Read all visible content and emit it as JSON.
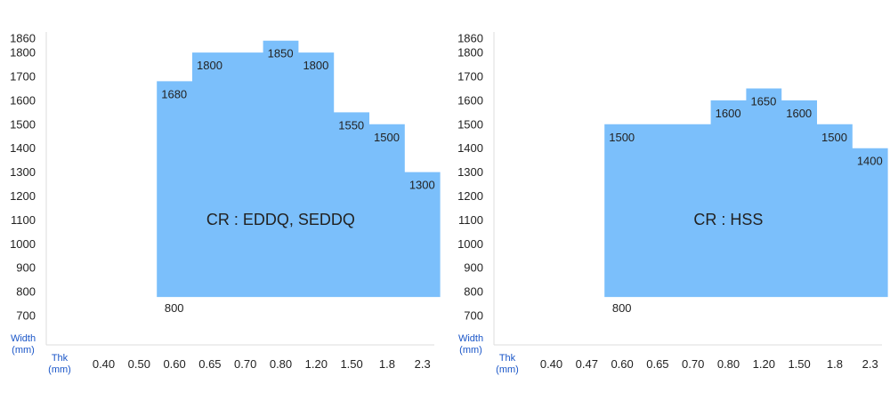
{
  "colors": {
    "fill": "#7bbffb",
    "axis": "#dddddd",
    "axis_title": "#1a56c8",
    "text": "#222222"
  },
  "chart_data": [
    {
      "type": "area",
      "title": "",
      "label": "CR : EDDQ, SEDDQ",
      "xlabel": "Thk (mm)",
      "ylabel": "Width (mm)",
      "y_ticks": [
        700,
        800,
        900,
        1000,
        1100,
        1200,
        1300,
        1400,
        1500,
        1600,
        1700,
        1800,
        1860
      ],
      "x_categories": [
        "0.40",
        "0.50",
        "0.60",
        "0.65",
        "0.70",
        "0.80",
        "1.20",
        "1.50",
        "1.8",
        "2.3"
      ],
      "grid": false,
      "min_width": 800,
      "steps": [
        {
          "x": "0.60",
          "max": 1680
        },
        {
          "x": "0.65",
          "max": 1800
        },
        {
          "x": "0.70",
          "max": 1800
        },
        {
          "x": "0.80",
          "max": 1850
        },
        {
          "x": "1.20",
          "max": 1800
        },
        {
          "x": "1.50",
          "max": 1550
        },
        {
          "x": "1.8",
          "max": 1500
        },
        {
          "x": "2.3",
          "max": 1300
        }
      ],
      "labels": [
        {
          "text": "1680",
          "x": "0.60"
        },
        {
          "text": "1800",
          "x": "0.65"
        },
        {
          "text": "1850",
          "x": "0.80"
        },
        {
          "text": "1800",
          "x": "1.20"
        },
        {
          "text": "1550",
          "x": "1.50"
        },
        {
          "text": "1500",
          "x": "1.8"
        },
        {
          "text": "1300",
          "x": "2.3"
        },
        {
          "text": "800",
          "x": "0.60"
        }
      ]
    },
    {
      "type": "area",
      "title": "",
      "label": "CR : HSS",
      "xlabel": "Thk (mm)",
      "ylabel": "Width (mm)",
      "y_ticks": [
        700,
        800,
        900,
        1000,
        1100,
        1200,
        1300,
        1400,
        1500,
        1600,
        1700,
        1800,
        1860
      ],
      "x_categories": [
        "0.40",
        "0.47",
        "0.60",
        "0.65",
        "0.70",
        "0.80",
        "1.20",
        "1.50",
        "1.8",
        "2.3"
      ],
      "grid": false,
      "min_width": 800,
      "steps": [
        {
          "x": "0.60",
          "max": 1500
        },
        {
          "x": "0.65",
          "max": 1500
        },
        {
          "x": "0.70",
          "max": 1500
        },
        {
          "x": "0.80",
          "max": 1600
        },
        {
          "x": "1.20",
          "max": 1650
        },
        {
          "x": "1.50",
          "max": 1600
        },
        {
          "x": "1.8",
          "max": 1500
        },
        {
          "x": "2.3",
          "max": 1400
        }
      ],
      "labels": [
        {
          "text": "1500",
          "x": "0.60"
        },
        {
          "text": "1600",
          "x": "0.80"
        },
        {
          "text": "1650",
          "x": "1.20"
        },
        {
          "text": "1600",
          "x": "1.50"
        },
        {
          "text": "1500",
          "x": "1.8"
        },
        {
          "text": "1400",
          "x": "2.3"
        },
        {
          "text": "800",
          "x": "0.60"
        }
      ]
    }
  ],
  "axis_titles": {
    "y_line1": "Width",
    "y_line2": "(mm)",
    "x_line1": "Thk",
    "x_line2": "(mm)"
  }
}
